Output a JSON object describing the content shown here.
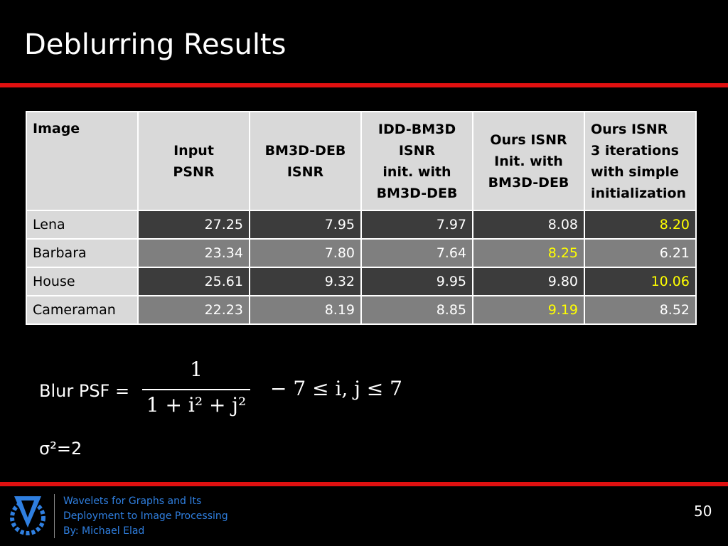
{
  "header": {
    "title": "Deblurring Results"
  },
  "table": {
    "columns": [
      "Image",
      "Input\nPSNR",
      "BM3D-DEB\nISNR",
      "IDD-BM3D\nISNR\ninit. with\nBM3D-DEB",
      "Ours ISNR\nInit. with\nBM3D-DEB",
      "Ours ISNR\n3 iterations\nwith simple\ninitialization"
    ],
    "highlight_color": "#ffff00",
    "rows": [
      {
        "cells": [
          "Lena",
          "27.25",
          "7.95",
          "7.97",
          "8.08",
          "8.20"
        ],
        "best": 5
      },
      {
        "cells": [
          "Barbara",
          "23.34",
          "7.80",
          "7.64",
          "8.25",
          "6.21"
        ],
        "best": 4
      },
      {
        "cells": [
          "House",
          "25.61",
          "9.32",
          "9.95",
          "9.80",
          "10.06"
        ],
        "best": 5
      },
      {
        "cells": [
          "Cameraman",
          "22.23",
          "8.19",
          "8.85",
          "9.19",
          "8.52"
        ],
        "best": 4
      }
    ]
  },
  "formula": {
    "label": "Blur PSF =",
    "numerator": "1",
    "denominator": "1 + i² + j²",
    "range": "− 7 ≤ i, j ≤ 7"
  },
  "noise": "σ²=2",
  "footer": {
    "lines": [
      "Wavelets for Graphs and Its",
      "Deployment to Image Processing",
      "By: Michael Elad"
    ],
    "page": "50"
  }
}
